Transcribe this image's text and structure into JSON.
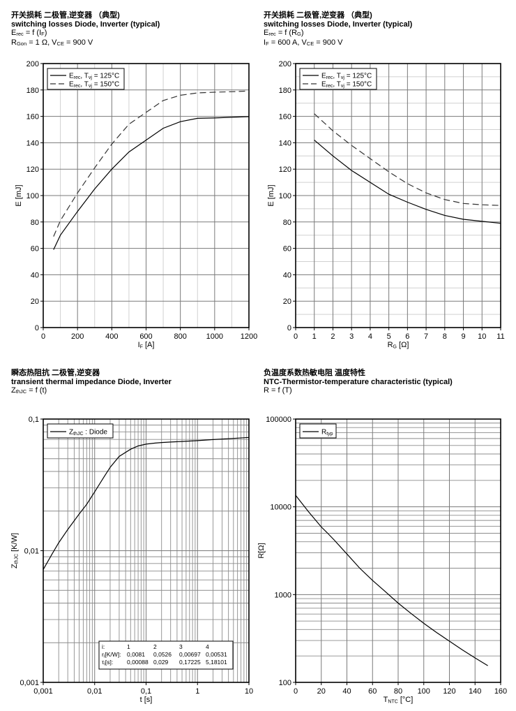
{
  "chart_data": [
    {
      "type": "line",
      "title_cn": "开关损耗 二极管,逆变器 （典型)",
      "title": "switching losses Diode, Inverter (typical)",
      "subtitle_main": "E",
      "subtitle_sub": "rec",
      "subtitle_rest": " = f (I",
      "subtitle_sub2": "F",
      "subtitle_end": ")",
      "cond": [
        "R",
        "Gon",
        " = 1 Ω, V",
        "CE",
        " = 900 V"
      ],
      "xlabel_main": "I",
      "xlabel_sub": "F",
      "xlabel_rest": " [A]",
      "ylabel": "E [mJ]",
      "xlim": [
        0,
        1200
      ],
      "ylim": [
        0,
        200
      ],
      "xticks": [
        "0",
        "200",
        "400",
        "600",
        "800",
        "1000",
        "1200"
      ],
      "xtick_values": [
        0,
        200,
        400,
        600,
        800,
        1000,
        1200
      ],
      "yticks": [
        "0",
        "20",
        "40",
        "60",
        "80",
        "100",
        "120",
        "140",
        "160",
        "180",
        "200"
      ],
      "ytick_values": [
        0,
        20,
        40,
        60,
        80,
        100,
        120,
        140,
        160,
        180,
        200
      ],
      "legend": [
        {
          "main": "E",
          "sub": "rec",
          "mid": ", T",
          "sub2": "vj",
          "rest": " = 125°C",
          "style": "solid"
        },
        {
          "main": "E",
          "sub": "rec",
          "mid": ", T",
          "sub2": "vj",
          "rest": " = 150°C",
          "style": "dashed"
        }
      ],
      "series": [
        {
          "name": "Erec, Tvj = 125°C",
          "style": "solid",
          "x": [
            60,
            100,
            200,
            300,
            400,
            500,
            600,
            700,
            800,
            900,
            1000,
            1100,
            1200
          ],
          "y": [
            59,
            70,
            88,
            105,
            120,
            133,
            142,
            151,
            156,
            158.5,
            158.8,
            159.3,
            159.8
          ]
        },
        {
          "name": "Erec, Tvj = 150°C",
          "style": "dashed",
          "x": [
            60,
            100,
            200,
            300,
            400,
            500,
            600,
            700,
            800,
            900,
            1000,
            1100,
            1200
          ],
          "y": [
            69,
            81,
            102,
            121,
            139,
            154,
            163,
            172,
            176,
            177.8,
            178.3,
            178.7,
            179.2
          ]
        }
      ]
    },
    {
      "type": "line",
      "title_cn": "开关损耗 二极管,逆变器 （典型)",
      "title": "switching losses Diode, Inverter (typical)",
      "subtitle_main": "E",
      "subtitle_sub": "rec",
      "subtitle_rest": " = f (R",
      "subtitle_sub2": "G",
      "subtitle_end": ")",
      "cond": [
        "I",
        "F",
        " = 600 A, V",
        "CE",
        " = 900 V"
      ],
      "xlabel_main": "R",
      "xlabel_sub": "G",
      "xlabel_rest": " [Ω]",
      "ylabel": "E [mJ]",
      "xlim": [
        0,
        11
      ],
      "ylim": [
        0,
        200
      ],
      "xticks": [
        "0",
        "1",
        "2",
        "3",
        "4",
        "5",
        "6",
        "7",
        "8",
        "9",
        "10",
        "11"
      ],
      "xtick_values": [
        0,
        1,
        2,
        3,
        4,
        5,
        6,
        7,
        8,
        9,
        10,
        11
      ],
      "yticks": [
        "0",
        "20",
        "40",
        "60",
        "80",
        "100",
        "120",
        "140",
        "160",
        "180",
        "200"
      ],
      "ytick_values": [
        0,
        20,
        40,
        60,
        80,
        100,
        120,
        140,
        160,
        180,
        200
      ],
      "legend": [
        {
          "main": "E",
          "sub": "rec",
          "mid": ", T",
          "sub2": "vj",
          "rest": " = 125°C",
          "style": "solid"
        },
        {
          "main": "E",
          "sub": "rec",
          "mid": ", T",
          "sub2": "vj",
          "rest": " = 150°C",
          "style": "dashed"
        }
      ],
      "series": [
        {
          "name": "Erec, Tvj = 125°C",
          "style": "solid",
          "x": [
            1,
            2,
            3,
            4,
            5,
            6,
            7,
            8,
            9,
            10,
            11
          ],
          "y": [
            142,
            130,
            119,
            110,
            101,
            95,
            89.5,
            85,
            82,
            80.5,
            79
          ]
        },
        {
          "name": "Erec, Tvj = 150°C",
          "style": "dashed",
          "x": [
            1,
            2,
            3,
            4,
            5,
            6,
            7,
            8,
            9,
            10,
            11
          ],
          "y": [
            162,
            149,
            138,
            128,
            118,
            109,
            102,
            97,
            94,
            93,
            92.5
          ]
        }
      ]
    },
    {
      "type": "line",
      "scale": "loglog",
      "title_cn": "瞬态热阻抗 二极管,逆变器",
      "title": "transient thermal impedance Diode, Inverter",
      "subtitle_main": "Z",
      "subtitle_sub": "thJC",
      "subtitle_rest": " = f (t)",
      "xlabel": "t [s]",
      "ylabel_main": "Z",
      "ylabel_sub": "thJC",
      "ylabel_rest": " [K/W]",
      "xlim": [
        0.001,
        10
      ],
      "ylim": [
        0.001,
        0.1
      ],
      "xticks": [
        "0,001",
        "0,01",
        "0,1",
        "1",
        "10"
      ],
      "xtick_values": [
        0.001,
        0.01,
        0.1,
        1,
        10
      ],
      "yticks": [
        "0,001",
        "0,01",
        "0,1"
      ],
      "ytick_values": [
        0.001,
        0.01,
        0.1
      ],
      "legend": [
        {
          "main": "Z",
          "sub": "thJC",
          "rest": " : Diode",
          "style": "solid"
        }
      ],
      "table": {
        "header": [
          "i:",
          "1",
          "2",
          "3",
          "4"
        ],
        "ri_label_main": "r",
        "ri_label_sub": "i",
        "ri_label_rest": "[K/W]:",
        "ri": [
          "0,0081",
          "0,0526",
          "0,00697",
          "0,00531"
        ],
        "tau_label_main": "τ",
        "tau_label_sub": "i",
        "tau_label_rest": "[s]:",
        "tau": [
          "0,00088",
          "0,029",
          "0,17225",
          "5,18101"
        ]
      },
      "series": [
        {
          "name": "ZthJC : Diode",
          "style": "solid",
          "x": [
            0.001,
            0.0015,
            0.002,
            0.003,
            0.005,
            0.007,
            0.01,
            0.015,
            0.02,
            0.03,
            0.05,
            0.07,
            0.1,
            0.15,
            0.2,
            0.3,
            0.5,
            0.7,
            1,
            2,
            3,
            5,
            10
          ],
          "y": [
            0.0072,
            0.0095,
            0.0115,
            0.0145,
            0.019,
            0.0225,
            0.028,
            0.036,
            0.043,
            0.052,
            0.059,
            0.0625,
            0.0645,
            0.0657,
            0.0663,
            0.0669,
            0.0676,
            0.0681,
            0.0686,
            0.0698,
            0.0705,
            0.0713,
            0.0725
          ]
        }
      ]
    },
    {
      "type": "line",
      "scale": "semilogy",
      "title_cn": "负温度系数热敏电阻 温度特性",
      "title": "NTC-Thermistor-temperature characteristic (typical)",
      "subtitle_main": "R = f (T)",
      "xlabel_main": "T",
      "xlabel_sub": "NTC",
      "xlabel_rest": " [°C]",
      "ylabel": "R[Ω]",
      "xlim": [
        0,
        160
      ],
      "ylim": [
        100,
        100000
      ],
      "xticks": [
        "0",
        "20",
        "40",
        "60",
        "80",
        "100",
        "120",
        "140",
        "160"
      ],
      "xtick_values": [
        0,
        20,
        40,
        60,
        80,
        100,
        120,
        140,
        160
      ],
      "yticks": [
        "100",
        "1000",
        "10000",
        "100000"
      ],
      "ytick_values": [
        100,
        1000,
        10000,
        100000
      ],
      "legend": [
        {
          "main": "R",
          "sub": "typ",
          "rest": "",
          "style": "solid"
        }
      ],
      "series": [
        {
          "name": "Rtyp",
          "style": "solid",
          "x": [
            0,
            10,
            20,
            25,
            30,
            40,
            50,
            60,
            70,
            80,
            90,
            100,
            110,
            120,
            130,
            140,
            150
          ],
          "y": [
            13500,
            8800,
            5900,
            5000,
            4200,
            2900,
            2000,
            1450,
            1080,
            800,
            610,
            470,
            370,
            295,
            235,
            190,
            155
          ]
        }
      ]
    }
  ]
}
